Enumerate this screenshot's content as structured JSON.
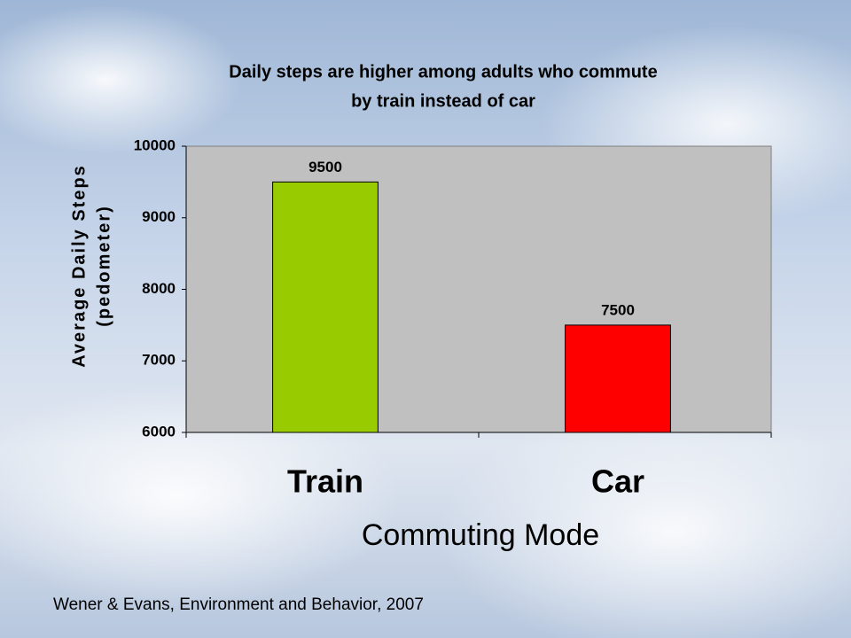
{
  "chart_data": {
    "type": "bar",
    "title": [
      "Daily steps are higher among adults who commute",
      "by train instead of car"
    ],
    "y_label": [
      "Average Daily Steps",
      "(pedometer)"
    ],
    "x_label": "Commuting Mode",
    "categories": [
      "Train",
      "Car"
    ],
    "values": [
      9500,
      7500
    ],
    "colors": [
      "#99cc00",
      "#ff0000"
    ],
    "ylim": [
      6000,
      10000
    ],
    "yticks": [
      6000,
      7000,
      8000,
      9000,
      10000
    ],
    "grid": false,
    "source": "Wener & Evans, Environment and Behavior, 2007"
  }
}
